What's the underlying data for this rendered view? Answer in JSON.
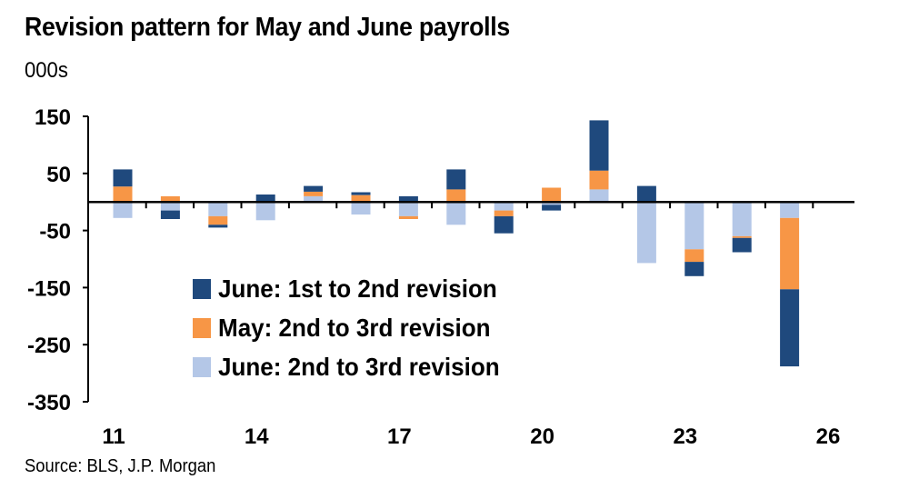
{
  "title": "Revision pattern for May and June payrolls",
  "unit_label": "000s",
  "source": "Source: BLS, J.P. Morgan",
  "chart_data": {
    "type": "bar",
    "stacked": true,
    "x": [
      11,
      12,
      13,
      14,
      15,
      16,
      17,
      18,
      19,
      20,
      21,
      22,
      23,
      24,
      25
    ],
    "x_tick_labels": [
      "11",
      "14",
      "17",
      "20",
      "23",
      "26"
    ],
    "x_tick_values": [
      11,
      14,
      17,
      20,
      23,
      26
    ],
    "xlim": [
      11,
      26
    ],
    "ylim": [
      -350,
      150
    ],
    "y_tick_labels": [
      "150",
      "50",
      "-50",
      "-150",
      "-250",
      "-350"
    ],
    "y_tick_values": [
      150,
      50,
      -50,
      -150,
      -250,
      -350
    ],
    "legend_position": "lower-left inside plot",
    "grid": false,
    "series": [
      {
        "name": "June: 2nd to 3rd revision",
        "color": "#b4c7e7",
        "values": [
          -28,
          -15,
          -25,
          -32,
          10,
          -22,
          -25,
          -40,
          -15,
          -5,
          22,
          -107,
          -83,
          -60,
          -28
        ]
      },
      {
        "name": "May: 2nd to 3rd revision",
        "color": "#f79646",
        "values": [
          27,
          10,
          -15,
          0,
          8,
          12,
          -5,
          22,
          -10,
          25,
          33,
          0,
          -22,
          -3,
          -125
        ]
      },
      {
        "name": "June: 1st to 2nd revision",
        "color": "#1f497d",
        "values": [
          30,
          -15,
          -5,
          13,
          10,
          5,
          10,
          35,
          -30,
          -10,
          88,
          28,
          -25,
          -25,
          -135
        ]
      }
    ],
    "legend_order": [
      "June: 1st to 2nd revision",
      "May: 2nd to 3rd revision",
      "June: 2nd to 3rd revision"
    ]
  }
}
